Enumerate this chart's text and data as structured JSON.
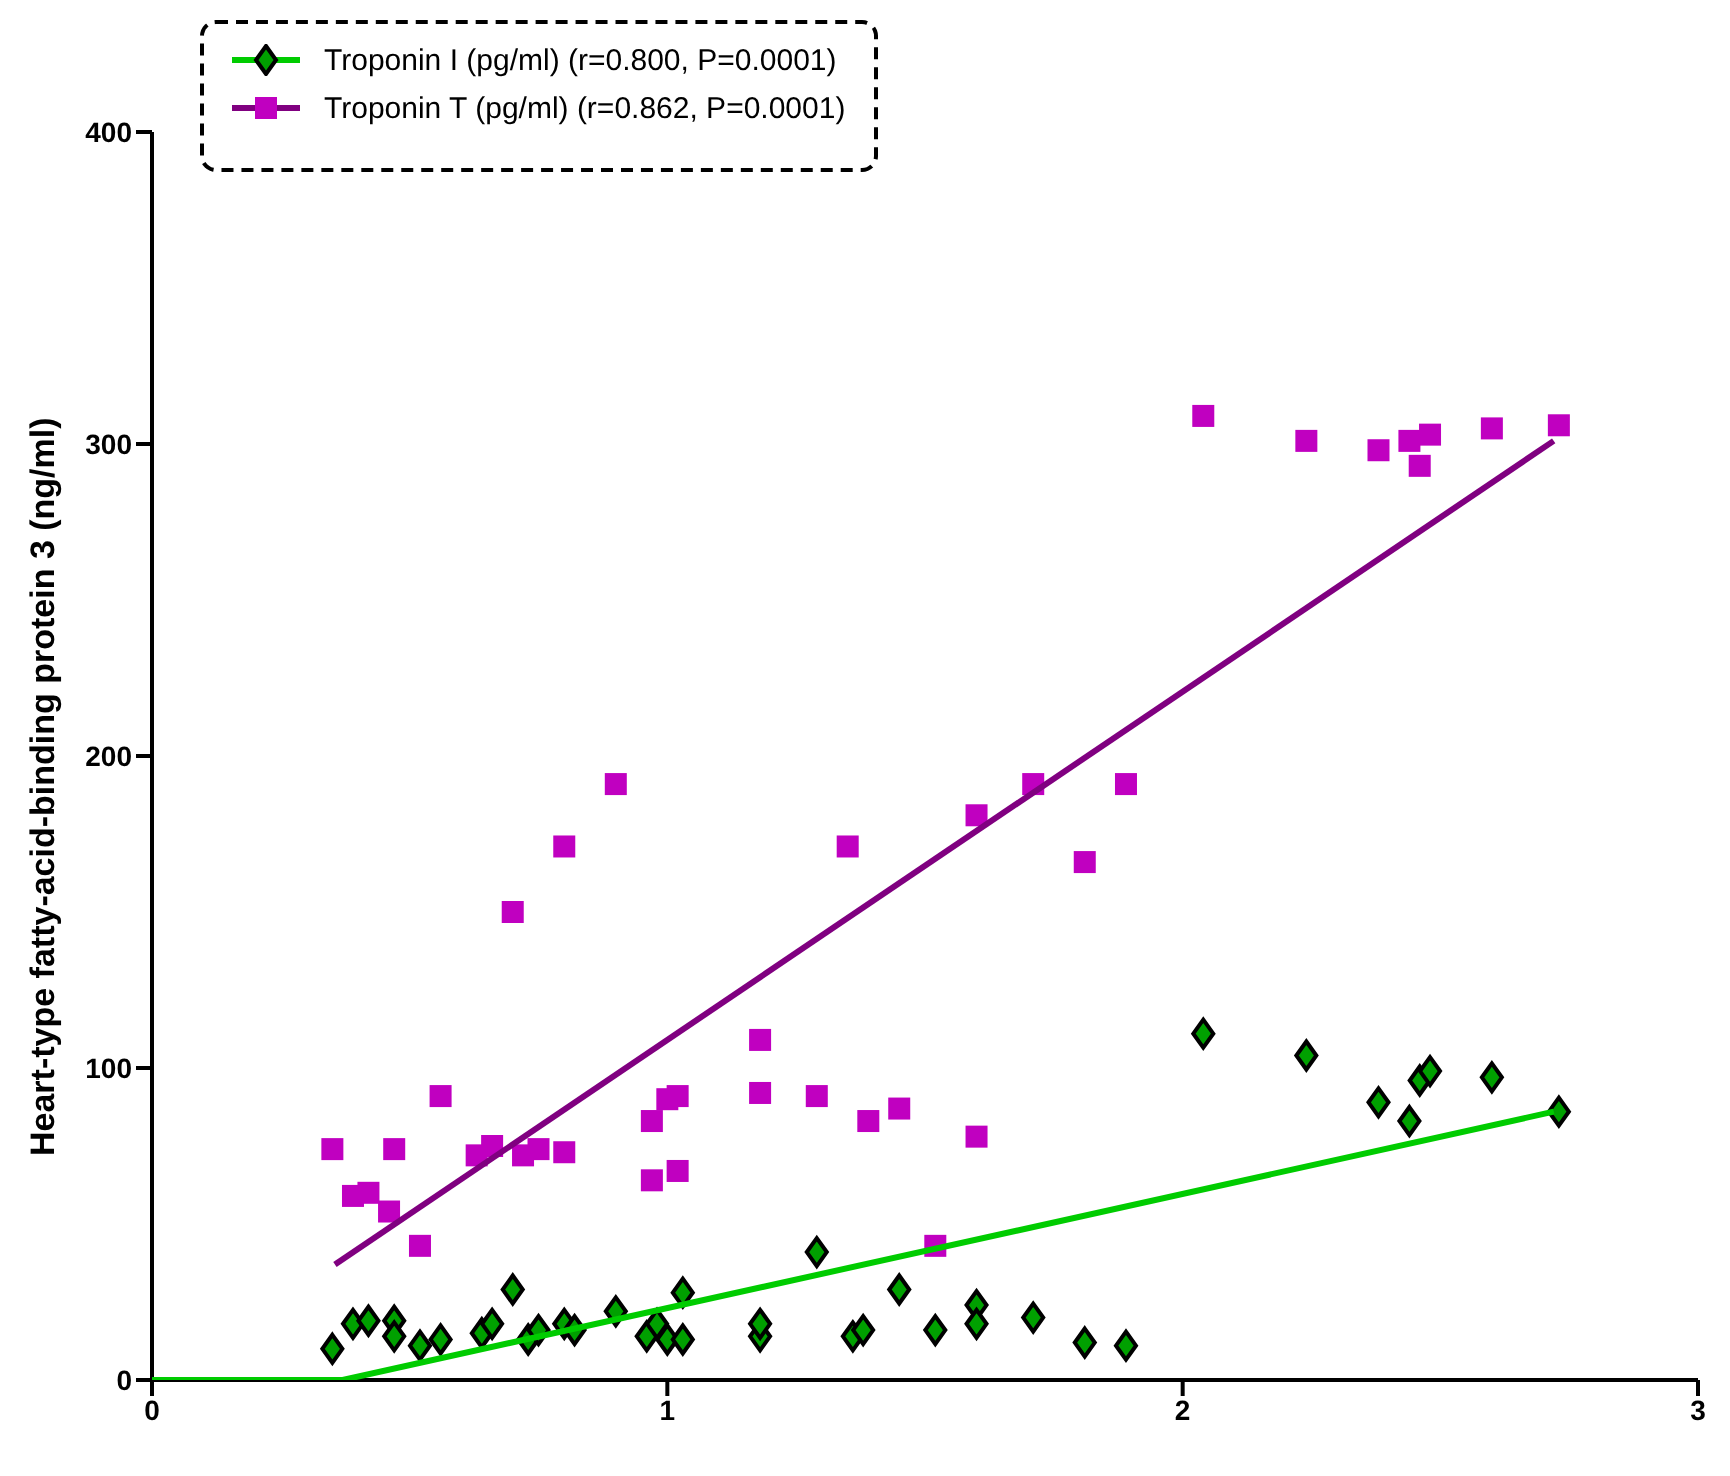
{
  "chart_data": {
    "type": "scatter",
    "ylabel": "Heart-type fatty-acid-binding protein 3 (ng/ml)",
    "xlim": [
      0,
      3
    ],
    "xticks": [
      0,
      1,
      2,
      3
    ],
    "ylim": [
      0,
      400
    ],
    "yticks": [
      0,
      100,
      200,
      300,
      400
    ],
    "grid": false,
    "legend": "top left",
    "series": [
      {
        "name": "Troponin I (pg/ml) (r=0.800, P=0.0001)",
        "marker": "diamond",
        "color": "#00a000",
        "x": [
          0.35,
          0.39,
          0.42,
          0.47,
          0.47,
          0.52,
          0.56,
          0.64,
          0.66,
          0.7,
          0.73,
          0.75,
          0.8,
          0.82,
          0.9,
          0.96,
          0.98,
          1.0,
          1.03,
          1.03,
          1.18,
          1.18,
          1.29,
          1.36,
          1.38,
          1.45,
          1.52,
          1.6,
          1.6,
          1.71,
          1.81,
          1.89,
          2.04,
          2.24,
          2.38,
          2.44,
          2.46,
          2.48,
          2.6,
          2.73
        ],
        "values": [
          10,
          18,
          19,
          19,
          14,
          11,
          13,
          15,
          18,
          29,
          13,
          16,
          18,
          16,
          22,
          14,
          18,
          13,
          13,
          28,
          14,
          18,
          41,
          14,
          16,
          29,
          16,
          24,
          18,
          20,
          12,
          11,
          111,
          104,
          89,
          83,
          96,
          99,
          97,
          86
        ]
      },
      {
        "name": "Troponin T (pg/ml) (r=0.862, P=0.0001)",
        "marker": "square",
        "color": "#c000c0",
        "x": [
          0.35,
          0.39,
          0.42,
          0.46,
          0.47,
          0.52,
          0.56,
          0.63,
          0.66,
          0.7,
          0.72,
          0.75,
          0.8,
          0.8,
          0.9,
          0.97,
          0.97,
          1.0,
          1.02,
          1.02,
          1.18,
          1.18,
          1.29,
          1.35,
          1.39,
          1.45,
          1.52,
          1.6,
          1.6,
          1.71,
          1.81,
          1.89,
          2.04,
          2.24,
          2.38,
          2.44,
          2.46,
          2.48,
          2.6,
          2.73
        ],
        "values": [
          74,
          59,
          60,
          54,
          74,
          43,
          91,
          72,
          75,
          150,
          72,
          74,
          73,
          171,
          191,
          83,
          64,
          90,
          91,
          67,
          109,
          92,
          91,
          171,
          83,
          87,
          43,
          78,
          181,
          191,
          166,
          191,
          309,
          301,
          298,
          301,
          293,
          303,
          305,
          306
        ]
      },
      {
        "type": "line",
        "color": "#00cc00",
        "x": [
          0,
          0.37,
          2.72
        ],
        "values": [
          0,
          0,
          86
        ]
      },
      {
        "type": "line",
        "color": "#800080",
        "x": [
          0.355,
          2.72
        ],
        "values": [
          37,
          301
        ]
      }
    ]
  }
}
